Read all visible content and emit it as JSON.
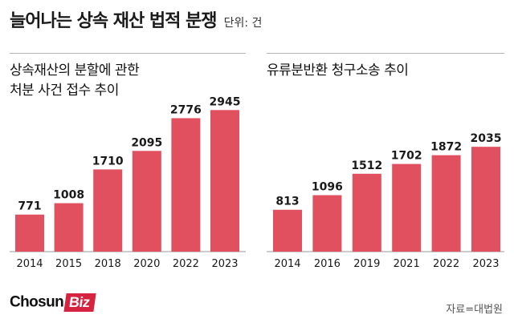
{
  "header": {
    "title": "늘어나는 상속 재산 법적 분쟁",
    "unit": "단위: 건"
  },
  "colors": {
    "bar": "#e0505f",
    "text": "#1a1a1a",
    "axis": "#999999"
  },
  "chart_data": [
    {
      "type": "bar",
      "title_lines": [
        "상속재산의 분할에 관한",
        "처분 사건 접수 추이"
      ],
      "categories": [
        "2014",
        "2015",
        "2018",
        "2020",
        "2022",
        "2023"
      ],
      "values": [
        771,
        1008,
        1710,
        2095,
        2776,
        2945
      ],
      "ylim": [
        0,
        3000
      ],
      "grid": false,
      "xlabel": "",
      "ylabel": ""
    },
    {
      "type": "bar",
      "title_lines": [
        "유류분반환 청구소송 추이"
      ],
      "categories": [
        "2014",
        "2016",
        "2019",
        "2021",
        "2022",
        "2023"
      ],
      "values": [
        813,
        1096,
        1512,
        1702,
        1872,
        2035
      ],
      "ylim": [
        0,
        2800
      ],
      "grid": false,
      "xlabel": "",
      "ylabel": ""
    }
  ],
  "footer": {
    "logo_main": "Chosun",
    "logo_accent": "Biz",
    "source": "자료=대법원"
  }
}
